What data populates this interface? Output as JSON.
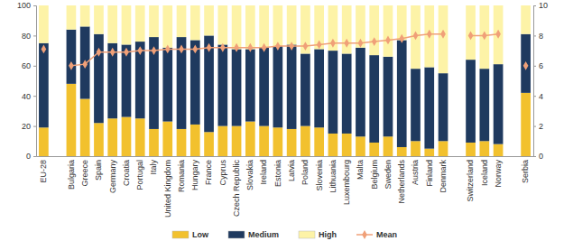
{
  "chart_data": {
    "type": "bar",
    "stacked": true,
    "categories": [
      "EU-28",
      null,
      "Bulgaria",
      "Greece",
      "Spain",
      "Germany",
      "Croatia",
      "Portugal",
      "Italy",
      "United Kingdom",
      "Romania",
      "Hungary",
      "France",
      "Cyprus",
      "Czech Republic",
      "Slovakia",
      "Ireland",
      "Estonia",
      "Latvia",
      "Poland",
      "Slovenia",
      "Lithuania",
      "Luxembourg",
      "Malta",
      "Belgium",
      "Sweden",
      "Netherlands",
      "Austria",
      "Finland",
      "Denmark",
      null,
      "Switzerland",
      "Iceland",
      "Norway",
      null,
      "Serbia"
    ],
    "series": [
      {
        "name": "Low",
        "type": "bar",
        "color": "#f2c12e",
        "values": [
          19,
          null,
          48,
          38,
          22,
          25,
          26,
          25,
          18,
          23,
          18,
          21,
          16,
          20,
          20,
          23,
          20,
          19,
          18,
          20,
          19,
          15,
          15,
          13,
          9,
          13,
          6,
          10,
          5,
          10,
          null,
          9,
          10,
          8,
          null,
          42
        ]
      },
      {
        "name": "Medium",
        "type": "bar",
        "color": "#1f3a5f",
        "values": [
          56,
          null,
          36,
          48,
          59,
          50,
          48,
          51,
          61,
          49,
          61,
          56,
          64,
          54,
          51,
          48,
          52,
          54,
          56,
          48,
          52,
          55,
          53,
          59,
          58,
          53,
          71,
          48,
          54,
          45,
          null,
          55,
          48,
          53,
          null,
          39
        ]
      },
      {
        "name": "High",
        "type": "bar",
        "color": "#fdf3a7",
        "values": [
          25,
          null,
          16,
          14,
          19,
          25,
          26,
          24,
          21,
          28,
          21,
          23,
          20,
          26,
          29,
          29,
          28,
          27,
          26,
          32,
          29,
          30,
          32,
          28,
          33,
          34,
          23,
          42,
          41,
          45,
          null,
          36,
          42,
          39,
          null,
          19
        ]
      },
      {
        "name": "Mean",
        "type": "line",
        "axis": "y2",
        "marker": "diamond",
        "color": "#f0a078",
        "values": [
          7.1,
          null,
          6.0,
          6.1,
          6.9,
          6.9,
          6.9,
          7.0,
          7.0,
          7.1,
          7.1,
          7.1,
          7.2,
          7.2,
          7.2,
          7.2,
          7.2,
          7.3,
          7.3,
          7.3,
          7.4,
          7.5,
          7.5,
          7.5,
          7.6,
          7.7,
          7.8,
          8.0,
          8.1,
          8.1,
          null,
          8.0,
          8.0,
          8.1,
          null,
          6.0
        ]
      }
    ],
    "ylim": [
      0,
      100
    ],
    "yticks": [
      0,
      20,
      40,
      60,
      80,
      100
    ],
    "y2lim": [
      0,
      10
    ],
    "y2ticks": [
      0,
      2,
      4,
      6,
      8,
      10
    ],
    "grid": false,
    "legend": "bottom"
  }
}
